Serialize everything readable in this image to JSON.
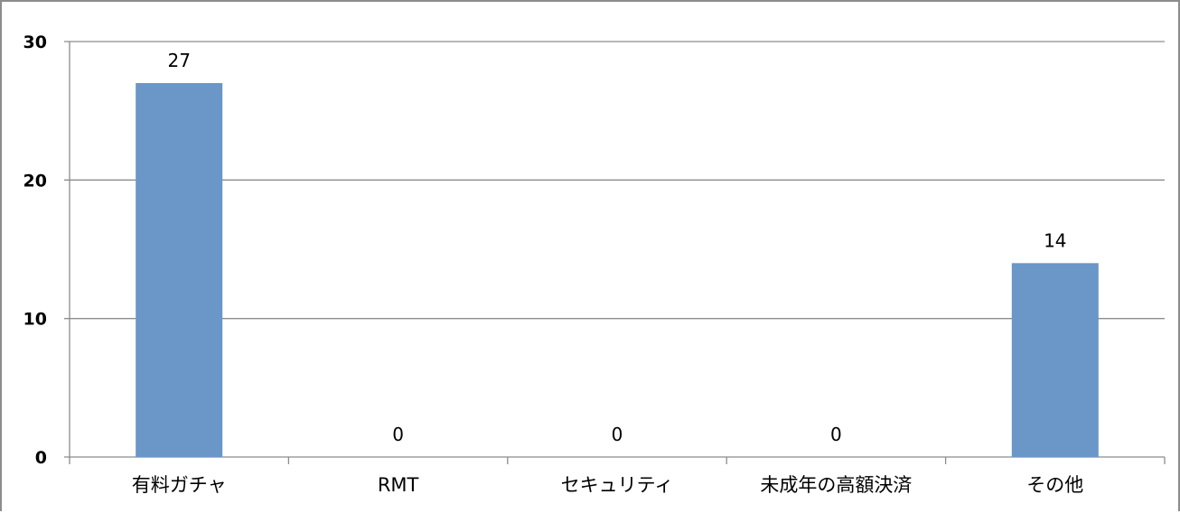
{
  "chart_data": {
    "type": "bar",
    "title": "",
    "xlabel": "",
    "ylabel": "",
    "categories": [
      "有料ガチャ",
      "RMT",
      "セキュリティ",
      "未成年の高額決済",
      "その他"
    ],
    "values": [
      27,
      0,
      0,
      0,
      14
    ],
    "data_labels": [
      "27",
      "0",
      "0",
      "0",
      "14"
    ],
    "ylim": [
      0,
      30
    ],
    "yticks": [
      0,
      10,
      20,
      30
    ],
    "ytick_labels": [
      "0",
      "10",
      "20",
      "30"
    ],
    "grid": true,
    "legend": "none",
    "colors": {
      "bar": "#6a96c8",
      "grid": "#8c8c8c",
      "axis": "#8c8c8c",
      "text": "#000000"
    }
  }
}
